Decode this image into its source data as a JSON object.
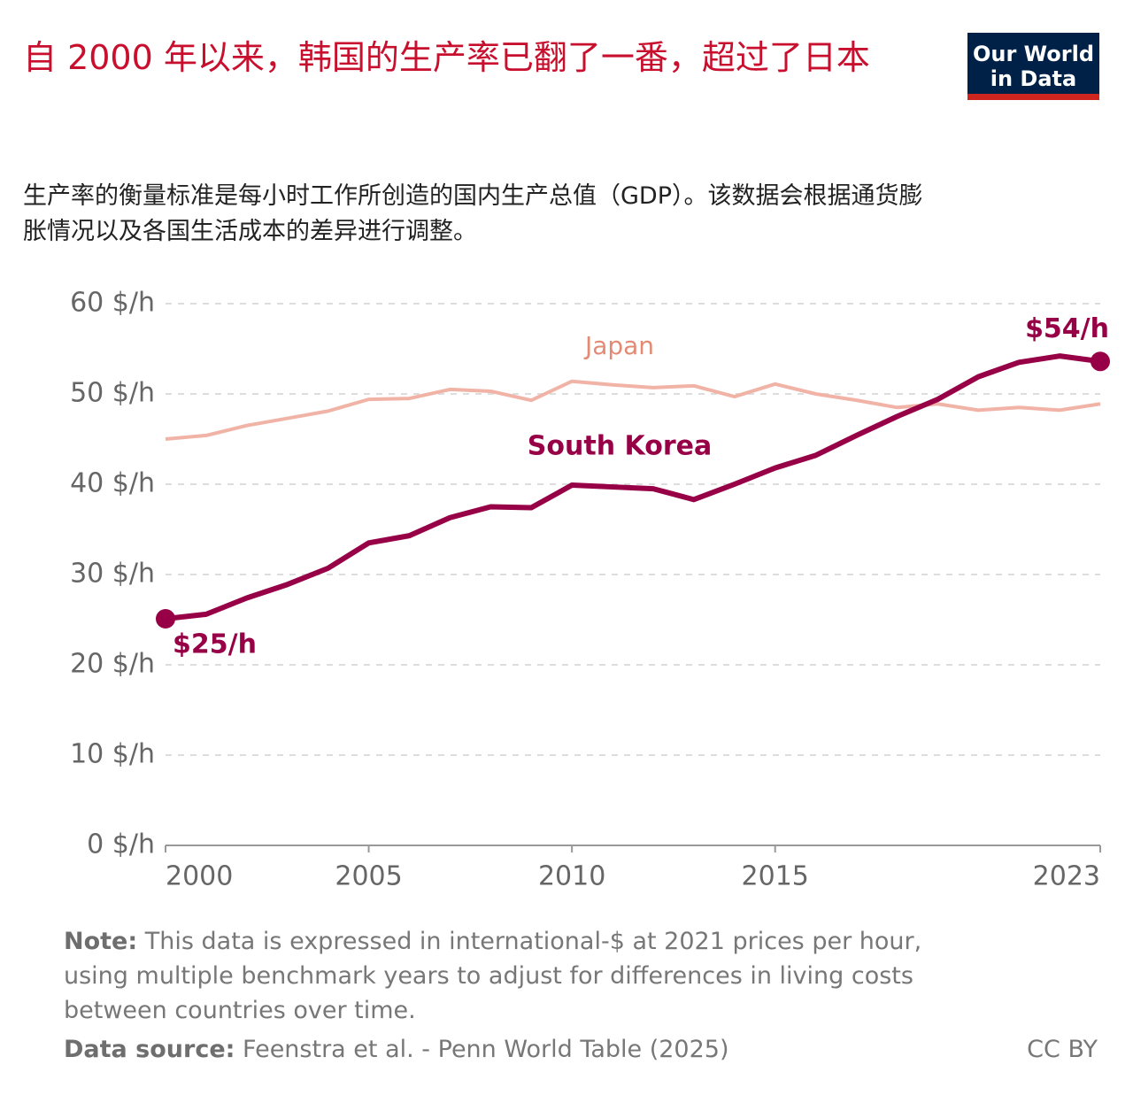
{
  "chart_data": {
    "type": "line",
    "title": "自 2000 年以来，韩国的生产率已翻了一番，超过了日本",
    "subtitle": "生产率的衡量标准是每小时工作所创造的国内生产总值（GDP）。该数据会根据通货膨胀情况以及各国生活成本的差异进行调整。",
    "logo": [
      "Our World",
      "in Data"
    ],
    "x": [
      2000,
      2001,
      2002,
      2003,
      2004,
      2005,
      2006,
      2007,
      2008,
      2009,
      2010,
      2011,
      2012,
      2013,
      2014,
      2015,
      2016,
      2017,
      2018,
      2019,
      2020,
      2021,
      2022,
      2023
    ],
    "xlim": [
      2000,
      2023
    ],
    "xticks": [
      2000,
      2005,
      2010,
      2015,
      2023
    ],
    "ylim": [
      0,
      60
    ],
    "yticks": [
      {
        "value": 0,
        "label": "0 $/h"
      },
      {
        "value": 10,
        "label": "10 $/h"
      },
      {
        "value": 20,
        "label": "20 $/h"
      },
      {
        "value": 30,
        "label": "30 $/h"
      },
      {
        "value": 40,
        "label": "40 $/h"
      },
      {
        "value": 50,
        "label": "50 $/h"
      },
      {
        "value": 60,
        "label": "60 $/h"
      }
    ],
    "grid": true,
    "series": [
      {
        "name": "Japan",
        "color": "#f0b3a6",
        "label_color": "#e38a74",
        "values": [
          45.0,
          45.4,
          46.5,
          47.3,
          48.1,
          49.4,
          49.5,
          50.5,
          50.3,
          49.3,
          51.4,
          51.0,
          50.7,
          50.9,
          49.7,
          51.1,
          50.0,
          49.3,
          48.5,
          48.9,
          48.2,
          48.5,
          48.2,
          48.9
        ]
      },
      {
        "name": "South Korea",
        "color": "#970046",
        "label_color": "#970046",
        "values": [
          25.1,
          25.6,
          27.4,
          28.9,
          30.7,
          33.5,
          34.3,
          36.3,
          37.5,
          37.4,
          39.9,
          39.7,
          39.5,
          38.3,
          40.0,
          41.8,
          43.2,
          45.4,
          47.5,
          49.4,
          51.9,
          53.5,
          54.2,
          53.6
        ],
        "value_labels": [
          "$25/h",
          null,
          null,
          null,
          null,
          null,
          null,
          null,
          null,
          null,
          null,
          null,
          null,
          null,
          null,
          null,
          null,
          null,
          null,
          null,
          null,
          null,
          null,
          "$54/h"
        ]
      }
    ],
    "note_label": "Note:",
    "note": "This data is expressed in international-$ at 2021 prices per hour, using multiple benchmark years to adjust for differences in living costs between countries over time.",
    "source_label": "Data source:",
    "source": "Feenstra et al. - Penn World Table (2025)",
    "license": "CC BY"
  }
}
